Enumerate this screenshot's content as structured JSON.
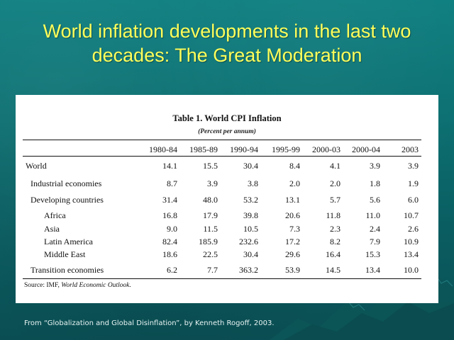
{
  "slide": {
    "title_line1": "World inflation developments in the last two",
    "title_line2": "decades: The Great Moderation",
    "attribution": "From “Globalization and Global Disinflation”, by Kenneth Rogoff, 2003.",
    "colors": {
      "background": "#0c6f71",
      "title": "#ffff5a",
      "panel": "#ffffff"
    }
  },
  "table": {
    "title": "Table 1. World CPI Inflation",
    "subtitle": "(Percent per annum)",
    "columns": [
      "1980-84",
      "1985-89",
      "1990-94",
      "1995-99",
      "2000-03",
      "2000-04",
      "2003"
    ],
    "rows": [
      {
        "label": "World",
        "values": [
          "14.1",
          "15.5",
          "30.4",
          "8.4",
          "4.1",
          "3.9",
          "3.9"
        ]
      },
      {
        "label": "Industrial economies",
        "values": [
          "8.7",
          "3.9",
          "3.8",
          "2.0",
          "2.0",
          "1.8",
          "1.9"
        ]
      },
      {
        "label": "Developing countries",
        "values": [
          "31.4",
          "48.0",
          "53.2",
          "13.1",
          "5.7",
          "5.6",
          "6.0"
        ]
      },
      {
        "label": "Africa",
        "values": [
          "16.8",
          "17.9",
          "39.8",
          "20.6",
          "11.8",
          "11.0",
          "10.7"
        ]
      },
      {
        "label": "Asia",
        "values": [
          "9.0",
          "11.5",
          "10.5",
          "7.3",
          "2.3",
          "2.4",
          "2.6"
        ]
      },
      {
        "label": "Latin America",
        "values": [
          "82.4",
          "185.9",
          "232.6",
          "17.2",
          "8.2",
          "7.9",
          "10.9"
        ]
      },
      {
        "label": "Middle East",
        "values": [
          "18.6",
          "22.5",
          "30.4",
          "29.6",
          "16.4",
          "15.3",
          "13.4"
        ]
      },
      {
        "label": "Transition economies",
        "values": [
          "6.2",
          "7.7",
          "363.2",
          "53.9",
          "14.5",
          "13.4",
          "10.0"
        ]
      }
    ],
    "source_prefix": "Source: IMF, ",
    "source_title": "World Economic Outlook",
    "source_suffix": "."
  }
}
